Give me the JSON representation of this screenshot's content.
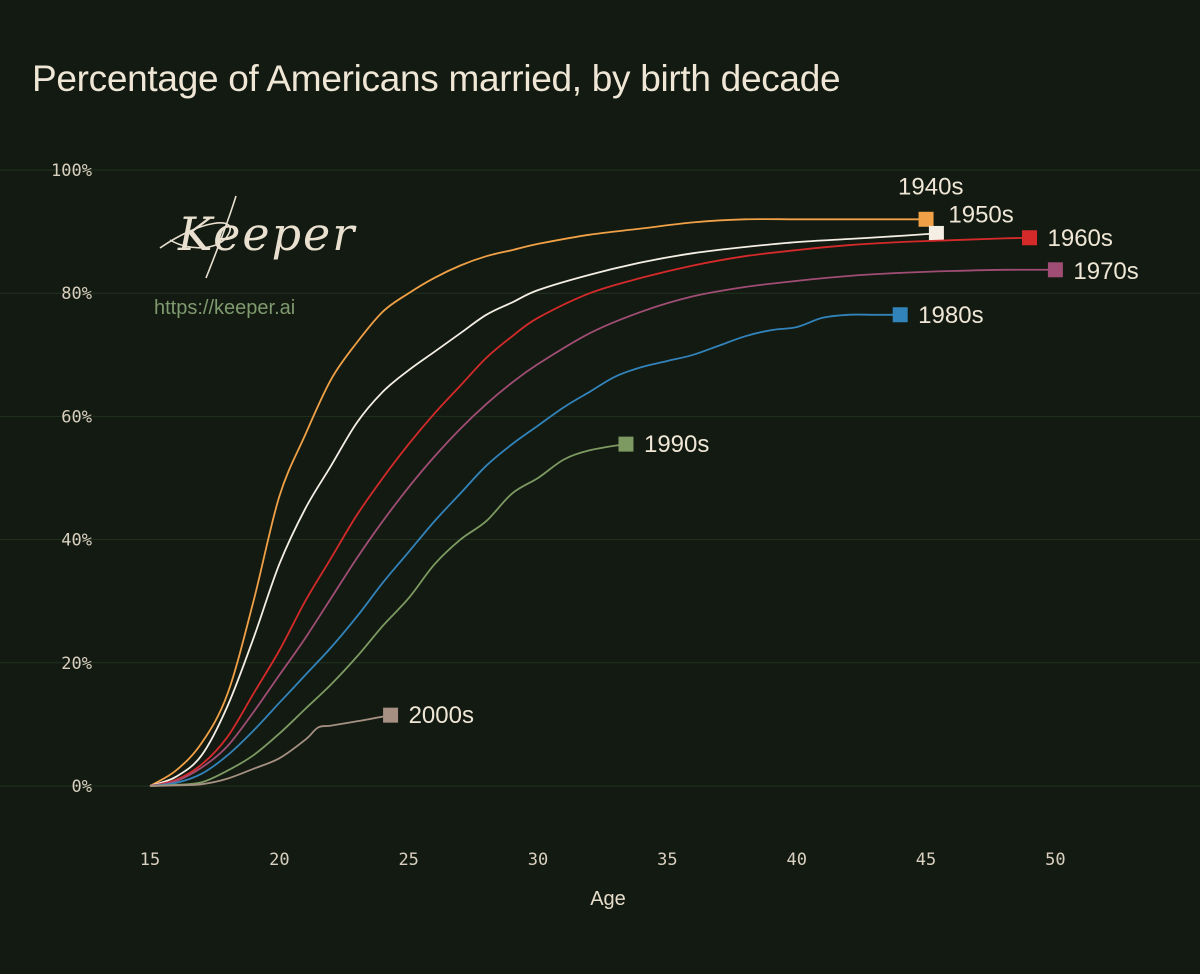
{
  "title": "Percentage of Americans married, by birth decade",
  "logo": {
    "wordmark": "Keeper",
    "url": "https://keeper.ai"
  },
  "chart_data": {
    "type": "line",
    "title": "Percentage of Americans married, by birth decade",
    "xlabel": "Age",
    "ylabel": "",
    "xlim": [
      15,
      53
    ],
    "ylim": [
      0,
      100
    ],
    "x_ticks": [
      15,
      20,
      25,
      30,
      35,
      40,
      45,
      50
    ],
    "y_ticks": [
      0,
      20,
      40,
      60,
      80,
      100
    ],
    "y_tick_labels": [
      "0%",
      "20%",
      "40%",
      "60%",
      "80%",
      "100%"
    ],
    "grid": "horizontal",
    "legend": "direct labels at line ends",
    "series": [
      {
        "name": "1940s",
        "color": "#f0a046",
        "x": [
          15,
          16,
          17,
          18,
          19,
          20,
          21,
          22,
          23,
          24,
          25,
          26,
          27,
          28,
          29,
          30,
          32,
          34,
          36,
          38,
          40,
          42,
          44,
          45
        ],
        "y": [
          0,
          2.5,
          7,
          15,
          30,
          47,
          57,
          66,
          72,
          77,
          80,
          82.5,
          84.5,
          86,
          87,
          88,
          89.5,
          90.5,
          91.5,
          92,
          92,
          92,
          92,
          92
        ]
      },
      {
        "name": "1950s",
        "color": "#f4eee4",
        "x": [
          15,
          16,
          17,
          18,
          19,
          20,
          21,
          22,
          23,
          24,
          25,
          26,
          27,
          28,
          29,
          30,
          32,
          34,
          36,
          38,
          40,
          42,
          44,
          45.4
        ],
        "y": [
          0,
          1.5,
          5,
          13,
          24,
          36,
          45,
          52,
          59,
          64,
          67.5,
          70.5,
          73.5,
          76.5,
          78.5,
          80.5,
          83,
          85,
          86.5,
          87.5,
          88.3,
          88.8,
          89.3,
          89.7
        ]
      },
      {
        "name": "1960s",
        "color": "#d42a2a",
        "x": [
          15,
          16,
          17,
          18,
          19,
          20,
          21,
          22,
          23,
          24,
          25,
          26,
          27,
          28,
          29,
          30,
          32,
          34,
          36,
          38,
          40,
          42,
          44,
          46,
          48,
          49
        ],
        "y": [
          0,
          1,
          3.5,
          8,
          15,
          22,
          30,
          37,
          44,
          50,
          55.5,
          60.5,
          65,
          69.5,
          73,
          76,
          80,
          82.5,
          84.5,
          86,
          87,
          87.8,
          88.3,
          88.6,
          88.9,
          89
        ]
      },
      {
        "name": "1970s",
        "color": "#a04d75",
        "x": [
          15,
          16,
          17,
          18,
          19,
          20,
          21,
          22,
          23,
          24,
          25,
          26,
          27,
          28,
          29,
          30,
          32,
          34,
          36,
          38,
          40,
          42,
          44,
          46,
          48,
          50
        ],
        "y": [
          0,
          0.8,
          3,
          6.5,
          12,
          18,
          24,
          30.5,
          37,
          43,
          48.5,
          53.5,
          58,
          62,
          65.5,
          68.5,
          73.5,
          77,
          79.5,
          81,
          82,
          82.8,
          83.3,
          83.6,
          83.8,
          83.8
        ]
      },
      {
        "name": "1980s",
        "color": "#3383bb",
        "x": [
          15,
          16,
          17,
          18,
          19,
          20,
          21,
          22,
          23,
          24,
          25,
          26,
          27,
          28,
          29,
          30,
          31,
          32,
          33,
          34,
          35,
          36,
          37,
          38,
          39,
          40,
          41,
          42,
          43,
          44
        ],
        "y": [
          0,
          0.5,
          2,
          5,
          9,
          13.5,
          18,
          22.5,
          27.5,
          33,
          38,
          43,
          47.5,
          52,
          55.5,
          58.5,
          61.5,
          64,
          66.5,
          68,
          69,
          70,
          71.5,
          73,
          74,
          74.5,
          76,
          76.5,
          76.5,
          76.5
        ]
      },
      {
        "name": "1990s",
        "color": "#7d9a62",
        "x": [
          15,
          16,
          17,
          18,
          19,
          20,
          21,
          22,
          23,
          24,
          25,
          26,
          27,
          28,
          29,
          30,
          31,
          32,
          33.4
        ],
        "y": [
          0,
          0.2,
          0.6,
          2.5,
          5,
          8.5,
          12.5,
          16.5,
          21,
          26,
          30.5,
          36,
          40,
          43,
          47.5,
          50,
          53,
          54.5,
          55.5
        ]
      },
      {
        "name": "2000s",
        "color": "#a59082",
        "x": [
          15,
          16,
          17,
          18,
          19,
          20,
          21,
          21.5,
          22,
          23,
          24.3
        ],
        "y": [
          0,
          0.1,
          0.3,
          1.2,
          2.8,
          4.5,
          7.5,
          9.5,
          9.8,
          10.5,
          11.5
        ]
      }
    ]
  }
}
